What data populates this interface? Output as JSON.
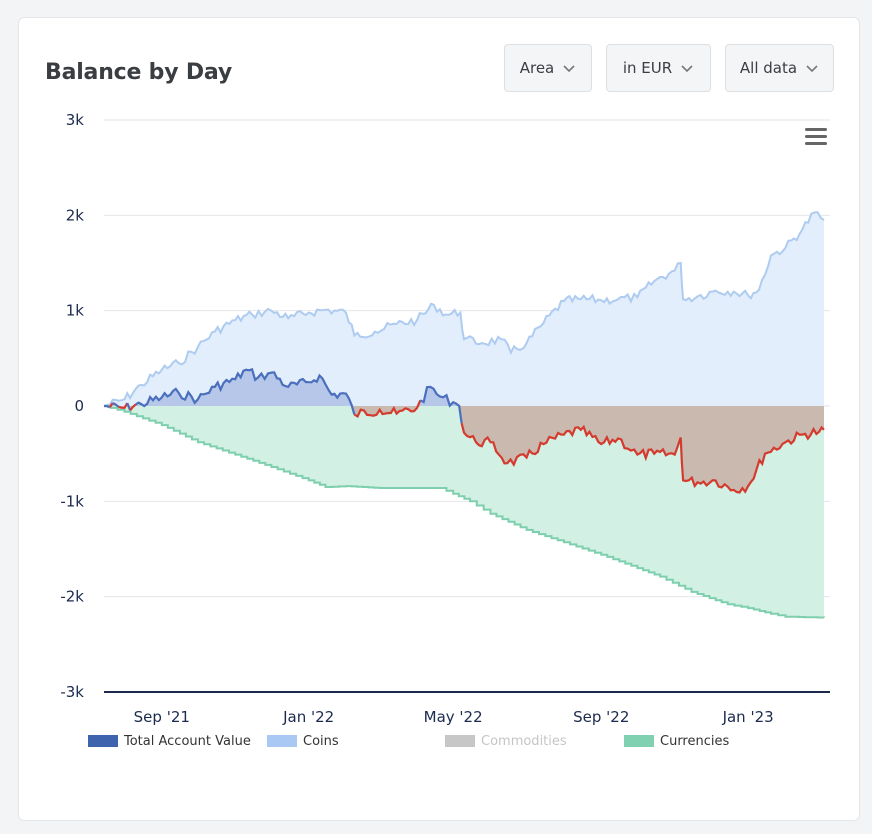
{
  "header": {
    "title": "Balance by Day"
  },
  "controls": [
    {
      "name": "chart-type-dropdown",
      "label": "Area"
    },
    {
      "name": "currency-dropdown",
      "label": "in EUR"
    },
    {
      "name": "range-dropdown",
      "label": "All data"
    }
  ],
  "icons": {
    "menu": "hamburger-icon",
    "dropdown": "chevron-down-icon"
  },
  "colors": {
    "total_line": "#4a6fbd",
    "total_fill": "#aec0e6",
    "total_negative_line": "#d53a2f",
    "commodities_fill": "#c8b2a8",
    "coins_line": "#aecbf0",
    "coins_fill": "#e3eefc",
    "currencies_line": "#7ecfae",
    "currencies_fill": "#d3f0e4",
    "axis": "#1b2a4e",
    "grid": "#e4e6ea"
  },
  "chart_data": {
    "type": "area",
    "x_axis": {
      "type": "date",
      "tick_labels": [
        "Sep '21",
        "Jan '22",
        "May '22",
        "Sep '22",
        "Jan '23"
      ],
      "tick_dates": [
        "2021-09-01",
        "2022-01-01",
        "2022-05-01",
        "2022-09-01",
        "2023-01-01"
      ],
      "range": [
        "2021-07-15",
        "2023-03-10"
      ]
    },
    "y_axis": {
      "tick_labels": [
        "3k",
        "2k",
        "1k",
        "0",
        "-1k",
        "-2k",
        "-3k"
      ],
      "range": [
        -3000,
        3000
      ],
      "grid": true
    },
    "legend": {
      "placement": "bottom",
      "items": [
        {
          "label": "Total Account Value",
          "color": "#3d64ad",
          "enabled": true
        },
        {
          "label": "Coins",
          "color": "#a9c8f3",
          "enabled": true
        },
        {
          "label": "Commodities",
          "color": "#c7c7c7",
          "enabled": false
        },
        {
          "label": "Currencies",
          "color": "#80d0b2",
          "enabled": true
        }
      ]
    },
    "series": [
      {
        "name": "Coins",
        "points": [
          [
            "2021-07-15",
            0
          ],
          [
            "2021-08-01",
            70
          ],
          [
            "2021-08-15",
            220
          ],
          [
            "2021-09-01",
            380
          ],
          [
            "2021-09-15",
            450
          ],
          [
            "2021-10-01",
            620
          ],
          [
            "2021-10-15",
            780
          ],
          [
            "2021-11-01",
            900
          ],
          [
            "2021-11-15",
            960
          ],
          [
            "2021-12-01",
            1000
          ],
          [
            "2021-12-15",
            920
          ],
          [
            "2022-01-01",
            980
          ],
          [
            "2022-01-15",
            1010
          ],
          [
            "2022-02-01",
            980
          ],
          [
            "2022-02-08",
            740
          ],
          [
            "2022-02-25",
            780
          ],
          [
            "2022-03-15",
            860
          ],
          [
            "2022-04-01",
            900
          ],
          [
            "2022-04-15",
            1060
          ],
          [
            "2022-04-25",
            960
          ],
          [
            "2022-05-07",
            980
          ],
          [
            "2022-05-10",
            700
          ],
          [
            "2022-05-25",
            660
          ],
          [
            "2022-06-10",
            700
          ],
          [
            "2022-06-18",
            560
          ],
          [
            "2022-07-01",
            660
          ],
          [
            "2022-07-15",
            870
          ],
          [
            "2022-08-01",
            1100
          ],
          [
            "2022-08-15",
            1120
          ],
          [
            "2022-09-01",
            1110
          ],
          [
            "2022-09-15",
            1120
          ],
          [
            "2022-10-01",
            1140
          ],
          [
            "2022-10-15",
            1310
          ],
          [
            "2022-11-01",
            1420
          ],
          [
            "2022-11-06",
            1500
          ],
          [
            "2022-11-08",
            1120
          ],
          [
            "2022-11-20",
            1150
          ],
          [
            "2022-12-05",
            1210
          ],
          [
            "2022-12-20",
            1200
          ],
          [
            "2023-01-01",
            1160
          ],
          [
            "2023-01-10",
            1220
          ],
          [
            "2023-01-20",
            1580
          ],
          [
            "2023-02-01",
            1660
          ],
          [
            "2023-02-15",
            1850
          ],
          [
            "2023-02-25",
            2030
          ],
          [
            "2023-03-05",
            1950
          ]
        ]
      },
      {
        "name": "Currencies",
        "points": [
          [
            "2021-07-15",
            0
          ],
          [
            "2021-08-01",
            -60
          ],
          [
            "2021-09-01",
            -200
          ],
          [
            "2021-10-01",
            -380
          ],
          [
            "2021-11-01",
            -510
          ],
          [
            "2021-12-01",
            -640
          ],
          [
            "2022-01-01",
            -780
          ],
          [
            "2022-01-15",
            -850
          ],
          [
            "2022-02-01",
            -840
          ],
          [
            "2022-03-01",
            -860
          ],
          [
            "2022-04-01",
            -860
          ],
          [
            "2022-04-20",
            -860
          ],
          [
            "2022-05-01",
            -920
          ],
          [
            "2022-05-15",
            -1000
          ],
          [
            "2022-06-01",
            -1130
          ],
          [
            "2022-07-01",
            -1300
          ],
          [
            "2022-08-01",
            -1430
          ],
          [
            "2022-09-01",
            -1560
          ],
          [
            "2022-10-01",
            -1700
          ],
          [
            "2022-10-20",
            -1790
          ],
          [
            "2022-11-15",
            -1950
          ],
          [
            "2022-12-15",
            -2080
          ],
          [
            "2023-01-01",
            -2120
          ],
          [
            "2023-01-20",
            -2180
          ],
          [
            "2023-02-01",
            -2210
          ],
          [
            "2023-03-05",
            -2220
          ]
        ]
      },
      {
        "name": "Total Account Value",
        "points": [
          [
            "2021-07-15",
            0
          ],
          [
            "2021-08-01",
            -20
          ],
          [
            "2021-08-15",
            20
          ],
          [
            "2021-09-01",
            90
          ],
          [
            "2021-09-15",
            140
          ],
          [
            "2021-10-01",
            70
          ],
          [
            "2021-10-15",
            200
          ],
          [
            "2021-11-01",
            280
          ],
          [
            "2021-11-10",
            380
          ],
          [
            "2021-11-20",
            300
          ],
          [
            "2021-12-01",
            350
          ],
          [
            "2021-12-15",
            200
          ],
          [
            "2022-01-01",
            250
          ],
          [
            "2022-01-10",
            320
          ],
          [
            "2022-01-20",
            120
          ],
          [
            "2022-02-01",
            130
          ],
          [
            "2022-02-08",
            -90
          ],
          [
            "2022-03-01",
            -40
          ],
          [
            "2022-03-15",
            -80
          ],
          [
            "2022-04-01",
            -20
          ],
          [
            "2022-04-12",
            200
          ],
          [
            "2022-04-20",
            100
          ],
          [
            "2022-05-01",
            40
          ],
          [
            "2022-05-06",
            0
          ],
          [
            "2022-05-10",
            -280
          ],
          [
            "2022-05-20",
            -380
          ],
          [
            "2022-06-01",
            -380
          ],
          [
            "2022-06-15",
            -600
          ],
          [
            "2022-07-01",
            -540
          ],
          [
            "2022-07-15",
            -400
          ],
          [
            "2022-08-01",
            -300
          ],
          [
            "2022-08-15",
            -250
          ],
          [
            "2022-09-01",
            -400
          ],
          [
            "2022-09-15",
            -340
          ],
          [
            "2022-10-01",
            -510
          ],
          [
            "2022-10-15",
            -500
          ],
          [
            "2022-11-01",
            -510
          ],
          [
            "2022-11-06",
            -330
          ],
          [
            "2022-11-08",
            -780
          ],
          [
            "2022-11-20",
            -800
          ],
          [
            "2022-12-05",
            -780
          ],
          [
            "2022-12-20",
            -880
          ],
          [
            "2023-01-01",
            -840
          ],
          [
            "2023-01-15",
            -500
          ],
          [
            "2023-02-01",
            -380
          ],
          [
            "2023-02-15",
            -300
          ],
          [
            "2023-03-01",
            -270
          ],
          [
            "2023-03-05",
            -250
          ]
        ]
      }
    ]
  }
}
